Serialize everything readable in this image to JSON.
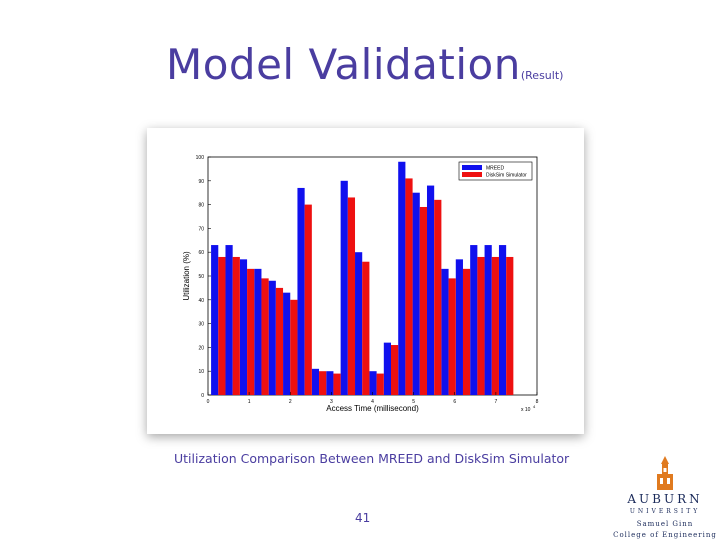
{
  "slide": {
    "title": "Model Validation",
    "subtitle": "(Result)",
    "caption": "Utilization Comparison Between MREED and DiskSim Simulator",
    "page_number": "41"
  },
  "logo": {
    "name": "AUBURN",
    "university": "UNIVERSITY",
    "line1": "Samuel Ginn",
    "line2": "College of Engineering"
  },
  "chart_data": {
    "type": "bar",
    "xlabel": "Access Time (millisecond)",
    "ylabel": "Utilization (%)",
    "x_exponent": "x 10",
    "x_exponent_power": "4",
    "xlim": [
      0,
      8
    ],
    "ylim": [
      0,
      100
    ],
    "xticks": [
      0,
      1,
      2,
      3,
      4,
      5,
      6,
      7,
      8
    ],
    "yticks": [
      0,
      10,
      20,
      30,
      40,
      50,
      60,
      70,
      80,
      90,
      100
    ],
    "legend_position": "top-right",
    "grid": false,
    "categories": [
      0.25,
      0.6,
      0.95,
      1.3,
      1.65,
      2.0,
      2.35,
      2.7,
      3.05,
      3.4,
      3.75,
      4.1,
      4.45,
      4.8,
      5.15,
      5.5,
      5.85,
      6.2,
      6.55,
      6.9,
      7.25
    ],
    "series": [
      {
        "name": "MREED",
        "color": "#1010ee",
        "values": [
          63,
          63,
          57,
          53,
          48,
          43,
          87,
          11,
          10,
          90,
          60,
          10,
          22,
          98,
          85,
          88,
          53,
          57,
          63,
          63,
          63
        ]
      },
      {
        "name": "DiskSim Simulator",
        "color": "#ee1010",
        "values": [
          58,
          58,
          53,
          49,
          45,
          40,
          80,
          10,
          9,
          83,
          56,
          9,
          21,
          91,
          79,
          82,
          49,
          53,
          58,
          58,
          58
        ]
      }
    ]
  }
}
